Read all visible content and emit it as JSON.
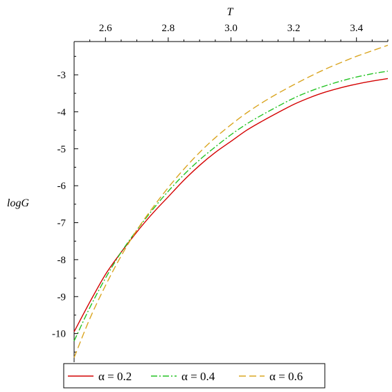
{
  "chart_data": {
    "type": "line",
    "xlabel": "T",
    "ylabel": "logG",
    "xlim": [
      2.5,
      3.5
    ],
    "ylim": [
      -10.7,
      -2.1
    ],
    "x_axis_position": "top",
    "y_axis_position": "left",
    "x_ticks": [
      2.6,
      2.8,
      3.0,
      3.2,
      3.4
    ],
    "x_tick_labels": [
      "2.6",
      "2.8",
      "3.0",
      "3.2",
      "3.4"
    ],
    "y_ticks": [
      -3,
      -4,
      -5,
      -6,
      -7,
      -8,
      -9,
      -10
    ],
    "y_tick_labels": [
      "-3",
      "-4",
      "-5",
      "-6",
      "-7",
      "-8",
      "-9",
      "-10"
    ],
    "grid": false,
    "legend_position": "bottom",
    "series": [
      {
        "name": "α = 0.2",
        "color": "#d40000",
        "style": "solid",
        "x": [
          2.5,
          2.55,
          2.6,
          2.65,
          2.7,
          2.75,
          2.8,
          2.85,
          2.9,
          2.95,
          3.0,
          3.05,
          3.1,
          3.15,
          3.2,
          3.25,
          3.3,
          3.35,
          3.4,
          3.45,
          3.5
        ],
        "y": [
          -9.95,
          -9.15,
          -8.4,
          -7.8,
          -7.25,
          -6.75,
          -6.3,
          -5.85,
          -5.45,
          -5.1,
          -4.8,
          -4.5,
          -4.25,
          -4.02,
          -3.8,
          -3.62,
          -3.47,
          -3.35,
          -3.25,
          -3.17,
          -3.1
        ]
      },
      {
        "name": "α = 0.4",
        "color": "#22c322",
        "style": "dashdot",
        "x": [
          2.5,
          2.55,
          2.6,
          2.65,
          2.7,
          2.75,
          2.8,
          2.85,
          2.9,
          2.95,
          3.0,
          3.05,
          3.1,
          3.15,
          3.2,
          3.25,
          3.3,
          3.35,
          3.4,
          3.45,
          3.5
        ],
        "y": [
          -10.2,
          -9.3,
          -8.5,
          -7.8,
          -7.2,
          -6.65,
          -6.15,
          -5.7,
          -5.3,
          -4.95,
          -4.62,
          -4.33,
          -4.08,
          -3.85,
          -3.63,
          -3.45,
          -3.3,
          -3.17,
          -3.06,
          -2.97,
          -2.9
        ]
      },
      {
        "name": "α = 0.6",
        "color": "#daa520",
        "style": "dashed",
        "x": [
          2.5,
          2.55,
          2.6,
          2.65,
          2.7,
          2.75,
          2.8,
          2.85,
          2.9,
          2.95,
          3.0,
          3.05,
          3.1,
          3.15,
          3.2,
          3.25,
          3.3,
          3.35,
          3.4,
          3.45,
          3.5
        ],
        "y": [
          -10.65,
          -9.6,
          -8.7,
          -7.9,
          -7.2,
          -6.6,
          -6.05,
          -5.55,
          -5.1,
          -4.7,
          -4.35,
          -4.03,
          -3.75,
          -3.5,
          -3.27,
          -3.05,
          -2.85,
          -2.67,
          -2.5,
          -2.35,
          -2.2
        ]
      }
    ]
  }
}
